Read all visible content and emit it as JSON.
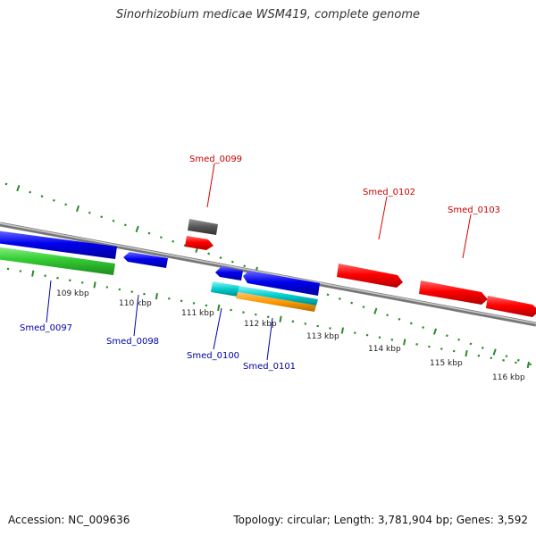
{
  "title": "Sinorhizobium medicae WSM419, complete genome",
  "footer": {
    "accession": "Accession: NC_009636",
    "topology": "Topology: circular; Length: 3,781,904 bp; Genes: 3,592"
  },
  "scale_labels": [
    "109 kbp",
    "110 kbp",
    "111 kbp",
    "112 kbp",
    "113 kbp",
    "114 kbp",
    "115 kbp",
    "116 kbp"
  ],
  "gene_labels": [
    {
      "name": "Smed_0097",
      "strand": "reverse",
      "color": "#0000aa"
    },
    {
      "name": "Smed_0098",
      "strand": "reverse",
      "color": "#0000aa"
    },
    {
      "name": "Smed_0099",
      "strand": "forward",
      "color": "#cc0000"
    },
    {
      "name": "Smed_0100",
      "strand": "reverse",
      "color": "#0000aa"
    },
    {
      "name": "Smed_0101",
      "strand": "reverse",
      "color": "#0000aa"
    },
    {
      "name": "Smed_0102",
      "strand": "forward",
      "color": "#cc0000"
    },
    {
      "name": "Smed_0103",
      "strand": "forward",
      "color": "#cc0000"
    }
  ],
  "colors": {
    "forward_gene": "#ff0000",
    "reverse_gene": "#0000ee",
    "rna_green": "#33cc33",
    "cyan_feature": "#00cccc",
    "orange_feature": "#ff9900",
    "gray_feature": "#555555",
    "tick": "#2a8a2a",
    "backbone": "#888888"
  }
}
